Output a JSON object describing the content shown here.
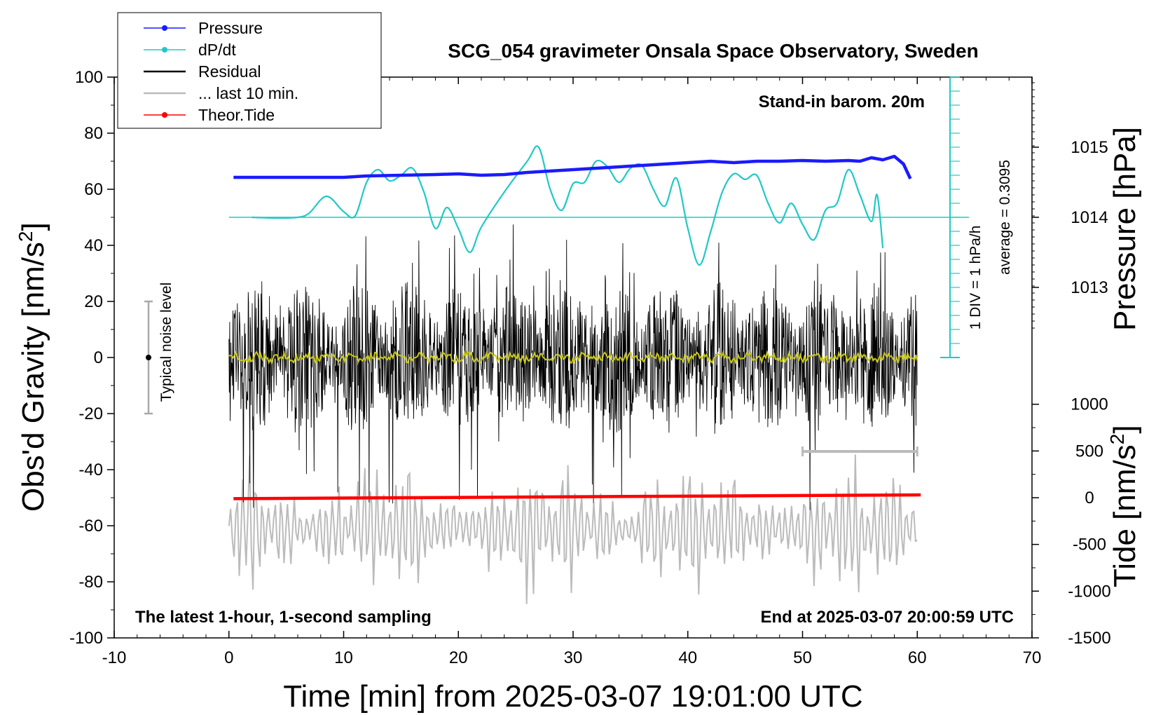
{
  "chart_data": {
    "type": "line",
    "title": "SCG_054 gravimeter Onsala Space Observatory, Sweden",
    "xlabel": "Time [min] from 2025-03-07 19:01:00 UTC",
    "ylabel_left": "Obs'd Gravity [nm/s",
    "ylabel_left_sup": "2",
    "ylabel_left_close": "]",
    "ylabel_right_top": "Pressure [hPa]",
    "ylabel_right_bottom": "Tide [nm/s",
    "ylabel_right_bottom_sup": "2",
    "ylabel_right_bottom_close": "]",
    "xlim": [
      -10,
      70
    ],
    "ylim_left": [
      -100,
      100
    ],
    "x_ticks": [
      "-10",
      "0",
      "10",
      "20",
      "30",
      "40",
      "50",
      "60",
      "70"
    ],
    "y_ticks_left": [
      "100",
      "80",
      "60",
      "40",
      "20",
      "0",
      "-20",
      "-40",
      "-60",
      "-80",
      "-100"
    ],
    "y_ticks_pressure": [
      "1015",
      "1014",
      "1013"
    ],
    "y_ticks_tide": [
      "1000",
      "500",
      "0",
      "-500",
      "-1000",
      "-1500"
    ],
    "annotations": {
      "barometer": "Stand-in barom. 20m",
      "scale_div": "1 DIV = 1 hPa/h",
      "scale_avg": "average = 0.3095",
      "noise": "Typical noise level",
      "bottom_left": "The latest 1-hour, 1-second sampling",
      "bottom_right": "End at 2025-03-07 20:00:59 UTC"
    },
    "legend": [
      {
        "label": "Pressure",
        "color": "#1a1aff",
        "marker": true
      },
      {
        "label": "dP/dt",
        "color": "#20c8c8",
        "marker": true
      },
      {
        "label": "Residual",
        "color": "#000000",
        "marker": false
      },
      {
        "label": "... last 10 min.",
        "color": "#bbbbbb",
        "marker": false
      },
      {
        "label": "Theor.Tide",
        "color": "#ff0000",
        "marker": true
      }
    ],
    "series": [
      {
        "name": "Pressure",
        "color": "#1a1aff",
        "x": [
          0.4,
          5,
          10,
          12,
          15,
          18,
          20,
          22,
          24,
          26,
          28,
          30,
          32,
          34,
          36,
          38,
          40,
          42,
          44,
          46,
          48,
          50,
          52,
          54,
          55,
          56,
          57,
          58,
          58.8,
          59.4
        ],
        "y": [
          1014.57,
          1014.57,
          1014.57,
          1014.59,
          1014.6,
          1014.61,
          1014.62,
          1014.6,
          1014.61,
          1014.64,
          1014.66,
          1014.68,
          1014.7,
          1014.72,
          1014.74,
          1014.76,
          1014.78,
          1014.8,
          1014.78,
          1014.8,
          1014.8,
          1014.81,
          1014.8,
          1014.81,
          1014.8,
          1014.85,
          1014.82,
          1014.87,
          1014.76,
          1014.55
        ]
      },
      {
        "name": "dP/dt",
        "color": "#20c8c8",
        "x": [
          2,
          4,
          6,
          7,
          8.5,
          10,
          11,
          12,
          13,
          14,
          15,
          16,
          17,
          18,
          19,
          20,
          21,
          22,
          24,
          26,
          27,
          28,
          29,
          30,
          31,
          32,
          33,
          34,
          35,
          36,
          37,
          38,
          39,
          40,
          41,
          42,
          43,
          44,
          45,
          46,
          47,
          48,
          49,
          50,
          51,
          52,
          53,
          54,
          55,
          56,
          56.5,
          57
        ],
        "y": [
          0.0,
          -0.05,
          0.0,
          0.3,
          1.5,
          0.4,
          0.1,
          2.5,
          3.4,
          2.6,
          3.0,
          3.5,
          1.8,
          -0.8,
          0.7,
          -0.8,
          -2.5,
          -0.7,
          1.8,
          4.0,
          5.0,
          2.0,
          0.5,
          2.4,
          2.5,
          4.0,
          3.6,
          2.5,
          3.5,
          3.7,
          2.0,
          0.8,
          2.8,
          -0.8,
          -3.4,
          -1.0,
          1.8,
          3.1,
          2.7,
          3.0,
          1.0,
          -0.4,
          1.0,
          -0.5,
          -1.6,
          0.5,
          1.0,
          3.4,
          1.6,
          -0.3,
          1.6,
          -2.2
        ]
      },
      {
        "name": "Residual",
        "color": "#000000",
        "xrange": [
          0,
          60
        ],
        "envelope": 36
      },
      {
        "name": "... last 10 min.",
        "color": "#bbbbbb",
        "xrange": [
          0,
          60
        ],
        "envelope": 900
      },
      {
        "name": "Theor.Tide",
        "color": "#ff0000",
        "x": [
          0.4,
          60.3
        ],
        "y": [
          -10,
          30
        ]
      }
    ],
    "dpdt_zero_hpa_per_h": 0,
    "noise_level_bar": [
      -20,
      20
    ],
    "reference_bar_minutes": [
      50,
      60
    ]
  }
}
